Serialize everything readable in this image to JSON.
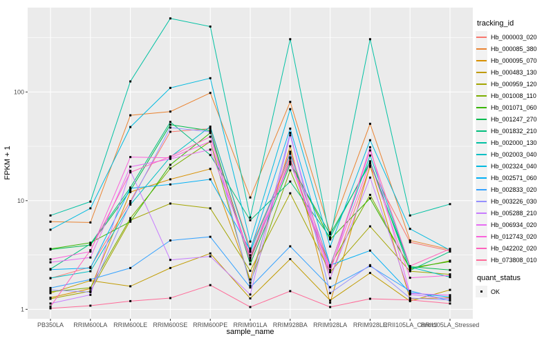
{
  "chart": {
    "x_axis_title": "sample_name",
    "y_axis_title": "FPKM + 1",
    "legend": {
      "title": "tracking_id"
    },
    "legend2": {
      "title": "quant_status",
      "items": [
        {
          "label": "OK",
          "marker": "black-square"
        }
      ]
    },
    "panel_bg": "#EBEBEB",
    "grid_color": "#FFFFFF",
    "tick_text_color": "#4D4D4D"
  },
  "chart_data": {
    "type": "line",
    "title": "",
    "xlabel": "sample_name",
    "ylabel": "FPKM + 1",
    "y_scale": "log10",
    "y_ticks": [
      1,
      10,
      100
    ],
    "y_minor_ticks": [
      3.162,
      31.62,
      316.2
    ],
    "ylim": [
      0.82,
      600
    ],
    "grid": true,
    "legend_position": "right",
    "point_marker": "black-square",
    "x": [
      "PB350LA",
      "RRIM600LA",
      "RRIM600LE",
      "RRIM600SE",
      "RRIM600PE",
      "RRIM901LA",
      "RRIM928BA",
      "RRIM928LA",
      "RRIM928LE",
      "RRII105LA_Control",
      "RRII105LA_Stressed"
    ],
    "series": [
      {
        "name": "Hb_000003_020",
        "color": "#F8766D",
        "values": [
          1.93,
          2.45,
          9.9,
          43,
          46,
          3.63,
          25,
          1.93,
          20.5,
          4.15,
          3.45
        ]
      },
      {
        "name": "Hb_000085_380",
        "color": "#EA8331",
        "values": [
          6.4,
          6.3,
          61,
          66,
          98,
          10.7,
          81,
          5.1,
          51,
          4.3,
          3.55
        ]
      },
      {
        "name": "Hb_000095_070",
        "color": "#D89000",
        "values": [
          1.28,
          1.55,
          12,
          15.7,
          19.6,
          1.88,
          31.7,
          1.15,
          21,
          1.25,
          1.28
        ]
      },
      {
        "name": "Hb_000483_130",
        "color": "#C09B00",
        "values": [
          1.41,
          1.84,
          1.63,
          2.4,
          3.27,
          1.26,
          2.9,
          1.21,
          2.16,
          1.19,
          1.51
        ]
      },
      {
        "name": "Hb_000959_120",
        "color": "#A3A500",
        "values": [
          1.25,
          1.47,
          6.6,
          9.4,
          8.5,
          2.26,
          11.7,
          2.2,
          5.8,
          2.24,
          2.1
        ]
      },
      {
        "name": "Hb_001008_110",
        "color": "#7CAE00",
        "values": [
          1.45,
          1.58,
          6.9,
          19.8,
          35,
          1.75,
          19,
          2.5,
          11.3,
          2.35,
          2.8
        ]
      },
      {
        "name": "Hb_001071_060",
        "color": "#39B600",
        "values": [
          3.6,
          4.1,
          6.4,
          21.4,
          42,
          2.93,
          23,
          4.4,
          10.5,
          2.4,
          2.75
        ]
      },
      {
        "name": "Hb_001247_270",
        "color": "#00BB4E",
        "values": [
          3.55,
          3.9,
          12.4,
          50,
          44,
          2.6,
          21.6,
          4.9,
          22,
          2.47,
          2.3
        ]
      },
      {
        "name": "Hb_001832_210",
        "color": "#00BF7D",
        "values": [
          2.35,
          4.0,
          13.2,
          53,
          26.3,
          6.6,
          15,
          4.6,
          23,
          2.28,
          3.4
        ]
      },
      {
        "name": "Hb_002000_130",
        "color": "#00C1A3",
        "values": [
          7.3,
          9.8,
          125,
          475,
          400,
          7.0,
          306,
          4.45,
          306,
          7.3,
          9.3
        ]
      },
      {
        "name": "Hb_002003_040",
        "color": "#00BFC4",
        "values": [
          1.94,
          2.24,
          9.2,
          25.2,
          48,
          3.38,
          27,
          2.52,
          26,
          2.45,
          1.98
        ]
      },
      {
        "name": "Hb_002324_040",
        "color": "#00BAE0",
        "values": [
          5.4,
          8.5,
          47.6,
          109,
          134,
          4.2,
          69.5,
          3.78,
          36,
          5.5,
          3.5
        ]
      },
      {
        "name": "Hb_002571_060",
        "color": "#00B0F6",
        "values": [
          2.32,
          2.4,
          13.0,
          14.1,
          15.7,
          3.5,
          46,
          2.55,
          3.47,
          1.42,
          1.3
        ]
      },
      {
        "name": "Hb_002833_020",
        "color": "#35A2FF",
        "values": [
          1.57,
          1.88,
          2.4,
          4.3,
          4.65,
          1.59,
          3.8,
          1.6,
          2.5,
          1.48,
          1.2
        ]
      },
      {
        "name": "Hb_003226_030",
        "color": "#9590FF",
        "values": [
          1.51,
          1.44,
          9.5,
          47,
          43,
          1.65,
          42,
          1.41,
          2.55,
          1.27,
          1.22
        ]
      },
      {
        "name": "Hb_005288_210",
        "color": "#C77CFF",
        "values": [
          1.13,
          1.36,
          18.8,
          2.85,
          3.07,
          1.37,
          40,
          1.93,
          16.3,
          1.37,
          1.25
        ]
      },
      {
        "name": "Hb_006934_020",
        "color": "#E76BF3",
        "values": [
          2.71,
          3.0,
          20.5,
          24.2,
          29.5,
          3.15,
          22.5,
          2.2,
          31,
          1.4,
          1.35
        ]
      },
      {
        "name": "Hb_012743_020",
        "color": "#FA62DB",
        "values": [
          2.88,
          3.4,
          25.2,
          24.8,
          35,
          2.8,
          24.3,
          2.3,
          22.5,
          1.95,
          2.05
        ]
      },
      {
        "name": "Hb_042202_020",
        "color": "#FF62BC",
        "values": [
          1.06,
          3.5,
          18.2,
          25.5,
          38.7,
          3.0,
          28.2,
          2.45,
          29,
          2.5,
          3.6
        ]
      },
      {
        "name": "Hb_073808_010",
        "color": "#FF6A98",
        "values": [
          1.02,
          1.08,
          1.19,
          1.27,
          1.67,
          1.05,
          1.47,
          1.05,
          1.25,
          1.22,
          1.13
        ]
      }
    ]
  }
}
